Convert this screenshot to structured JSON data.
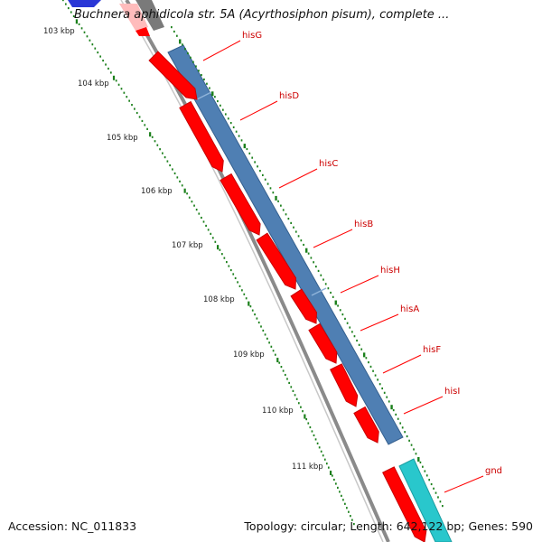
{
  "title": "Buchnera aphidicola str. 5A (Acyrthosiphon pisum), complete ...",
  "footer": {
    "accession_label": "Accession:",
    "accession": "NC_011833",
    "topology_label": "Topology:",
    "topology": "circular",
    "length_label": "Length:",
    "length": "642,122 bp",
    "genes_label": "Genes:",
    "genes": "590"
  },
  "ticks": [
    {
      "label": "103 kbp"
    },
    {
      "label": "104 kbp"
    },
    {
      "label": "105 kbp"
    },
    {
      "label": "106 kbp"
    },
    {
      "label": "107 kbp"
    },
    {
      "label": "108 kbp"
    },
    {
      "label": "109 kbp"
    },
    {
      "label": "110 kbp"
    },
    {
      "label": "111 kbp"
    }
  ],
  "genes": [
    {
      "name": "hisG"
    },
    {
      "name": "hisD"
    },
    {
      "name": "hisC"
    },
    {
      "name": "hisB"
    },
    {
      "name": "hisH"
    },
    {
      "name": "hisA"
    },
    {
      "name": "hisF"
    },
    {
      "name": "hisI"
    },
    {
      "name": "gnd"
    }
  ],
  "colors": {
    "cds": "#ff0000",
    "cds_outline": "#c80000",
    "operon": "#4f7fb3",
    "gnd_band": "#29c7cc",
    "backbone": "#8a8a8a",
    "tick": "#1a7f1a",
    "label_line": "#ff0000",
    "label_text": "#cc0000"
  }
}
